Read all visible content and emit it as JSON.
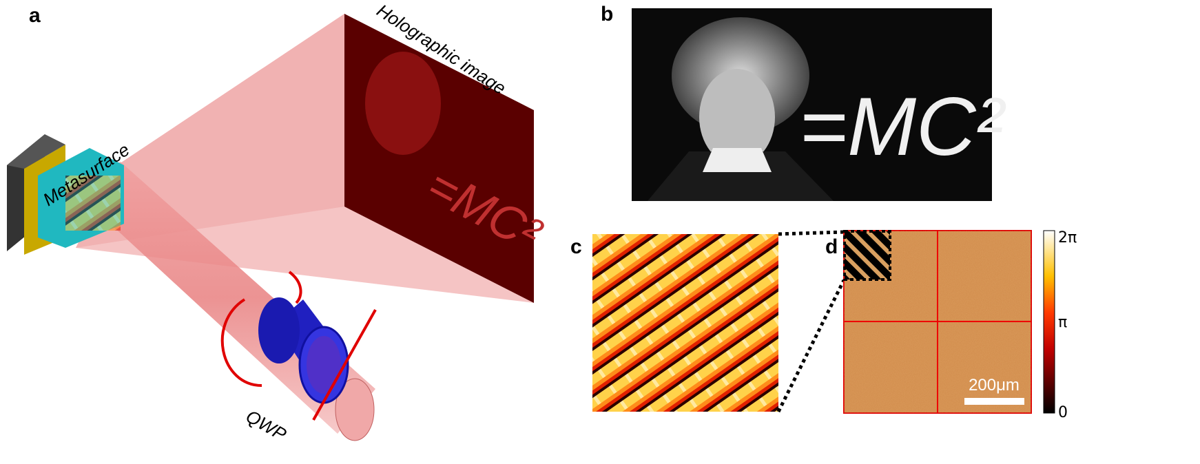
{
  "panels": {
    "a": {
      "label": "a",
      "hologram_label": "Holographic image",
      "metasurface_label": "Metasurface",
      "qwp_label": "QWP"
    },
    "b": {
      "label": "b",
      "photo_text": "=MC²"
    },
    "c": {
      "label": "c"
    },
    "d": {
      "label": "d",
      "scale_bar": "200μm"
    },
    "colorbar": {
      "ticks": [
        "2π",
        "π",
        "0"
      ]
    }
  }
}
